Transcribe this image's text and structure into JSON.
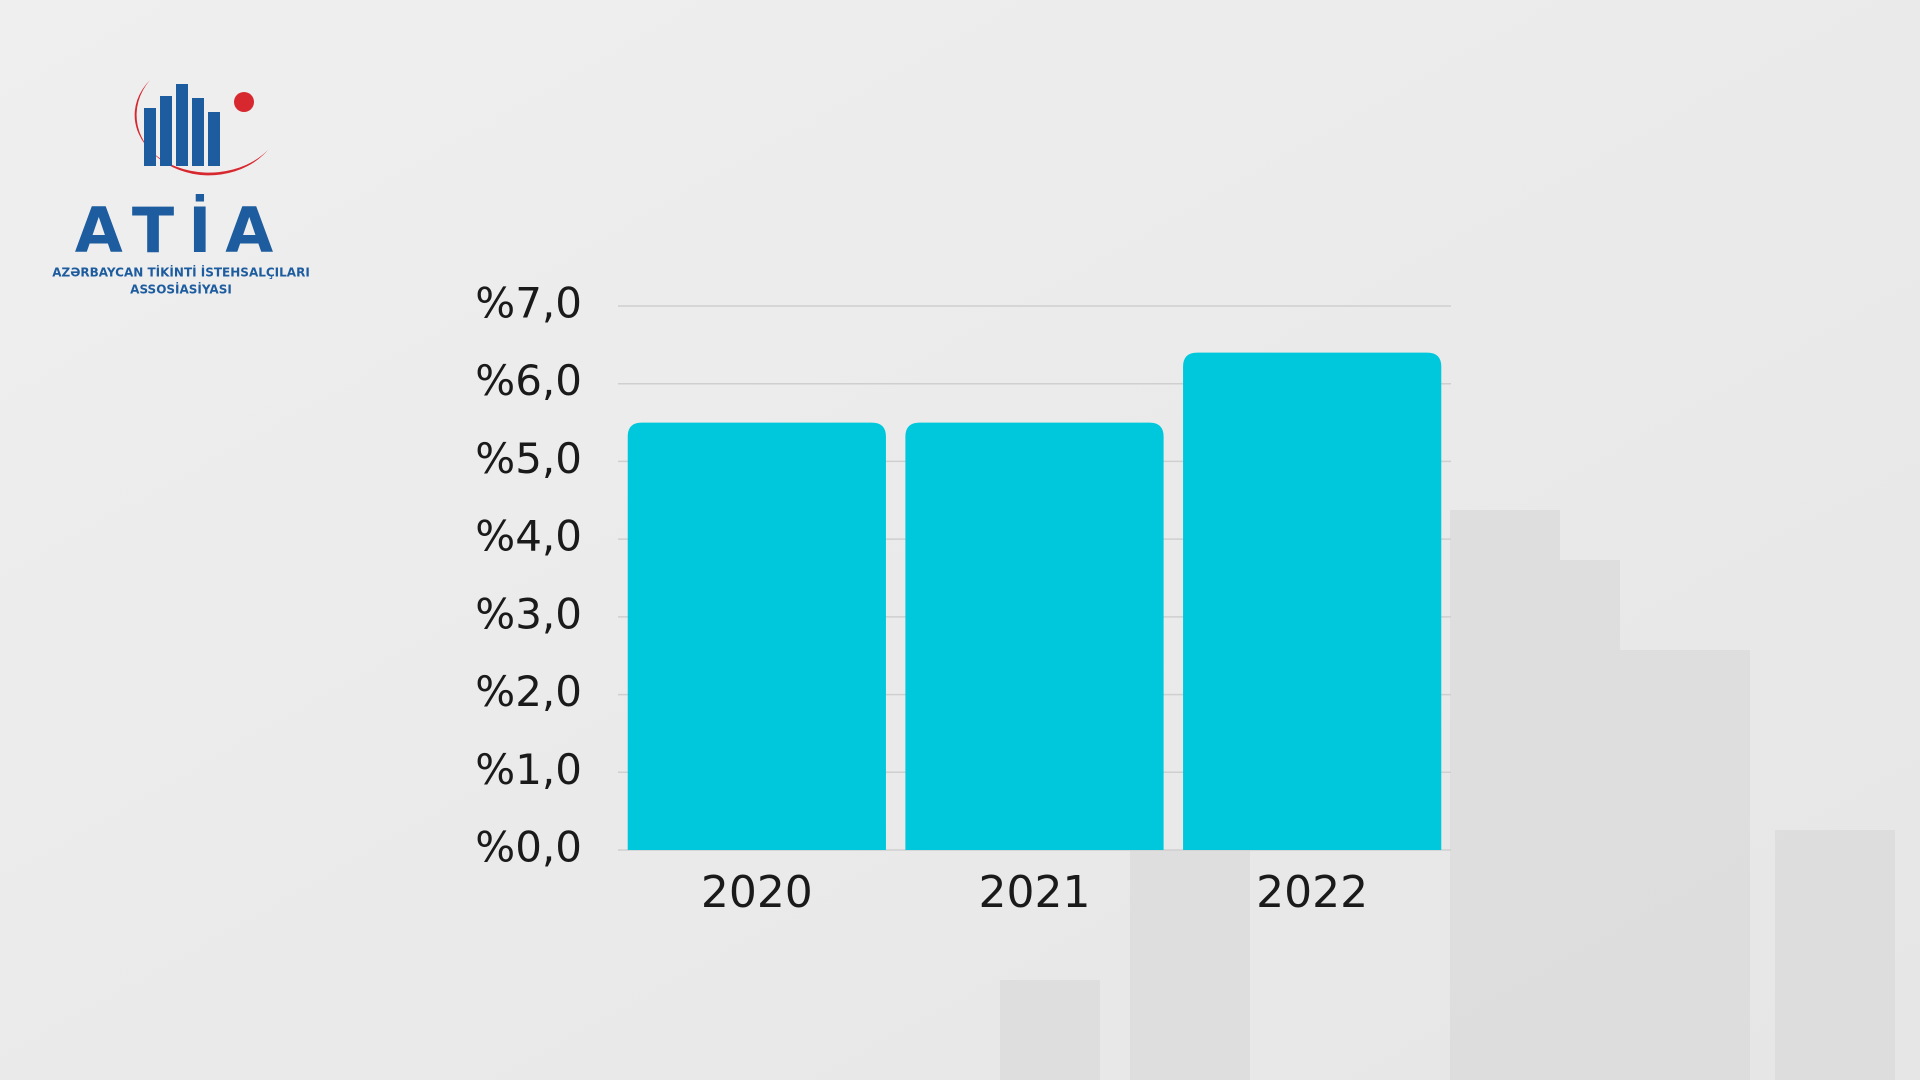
{
  "logo": {
    "name": "ATİA",
    "lines": [
      "AZƏRBAYCAN TİKİNTİ İSTEHSALÇILARI",
      "ASSOSİASİYASI"
    ]
  },
  "chart_data": {
    "type": "bar",
    "categories": [
      "2020",
      "2021",
      "2022"
    ],
    "values": [
      5.5,
      5.5,
      6.4
    ],
    "color": "#00c8dc",
    "ylim": [
      0,
      7
    ],
    "yticks": [
      {
        "value": 0,
        "label": "%0,0"
      },
      {
        "value": 1,
        "label": "%1,0"
      },
      {
        "value": 2,
        "label": "%2,0"
      },
      {
        "value": 3,
        "label": "%3,0"
      },
      {
        "value": 4,
        "label": "%4,0"
      },
      {
        "value": 5,
        "label": "%5,0"
      },
      {
        "value": 6,
        "label": "%6,0"
      },
      {
        "value": 7,
        "label": "%7,0"
      }
    ],
    "grid": true
  }
}
